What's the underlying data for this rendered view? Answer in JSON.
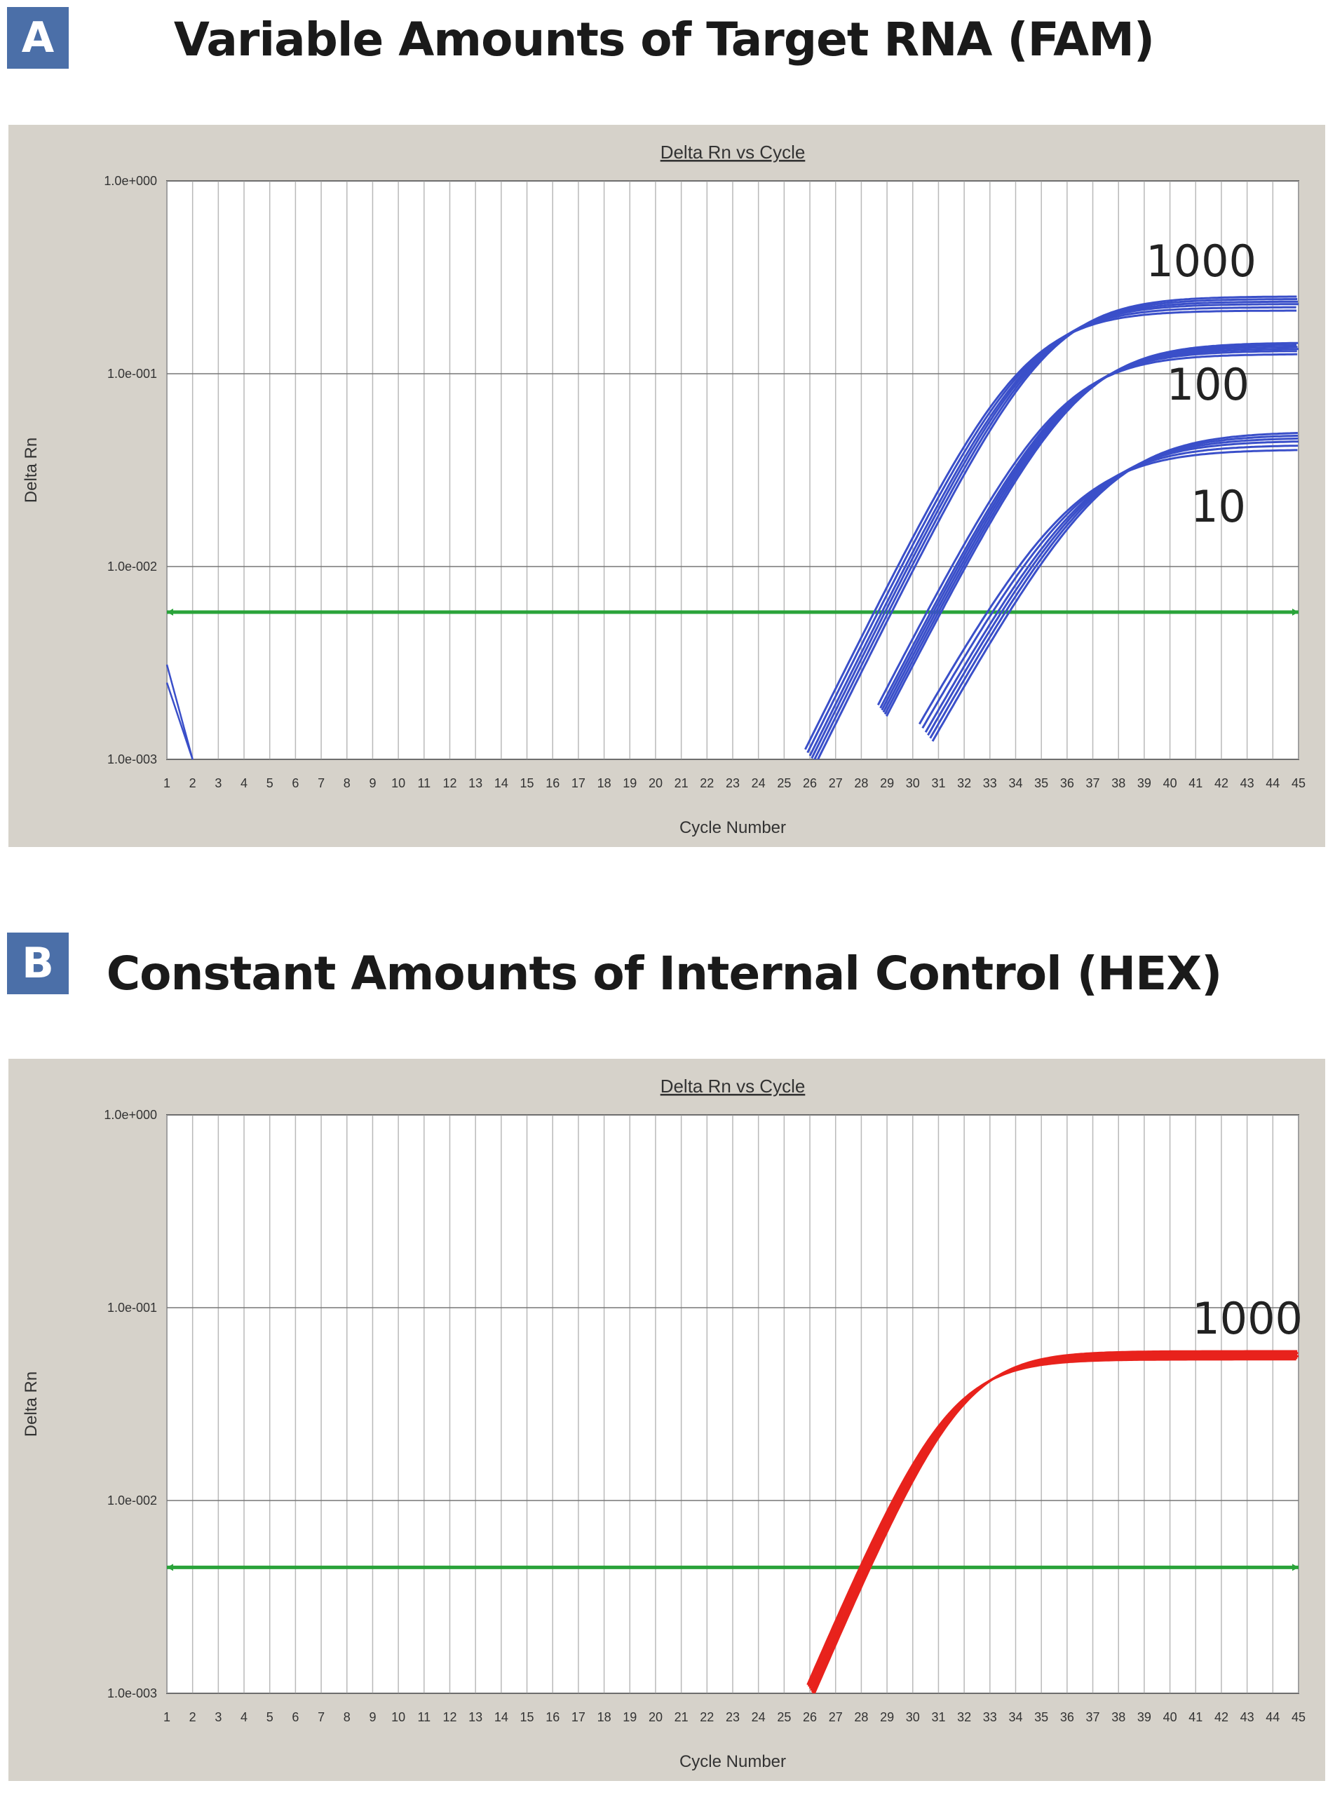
{
  "panels": [
    {
      "badge": "A",
      "title": "Variable Amounts of Target RNA (FAM)"
    },
    {
      "badge": "B",
      "title": "Constant Amounts of Internal Control (HEX)"
    }
  ],
  "chart_data": [
    {
      "type": "line",
      "title": "Delta Rn vs Cycle",
      "xlabel": "Cycle Number",
      "ylabel": "Delta Rn",
      "yscale": "log",
      "ylim": [
        0.001,
        1.0
      ],
      "xlim": [
        1,
        45
      ],
      "yticks": [
        "1.0e+000",
        "1.0e-001",
        "1.0e-002",
        "1.0e-003"
      ],
      "ytick_values": [
        1.0,
        0.1,
        0.01,
        0.001
      ],
      "xticks": [
        "1",
        "2",
        "3",
        "4",
        "5",
        "6",
        "7",
        "8",
        "9",
        "10",
        "11",
        "12",
        "13",
        "14",
        "15",
        "16",
        "17",
        "18",
        "19",
        "20",
        "21",
        "22",
        "23",
        "24",
        "25",
        "26",
        "27",
        "28",
        "29",
        "30",
        "31",
        "32",
        "33",
        "34",
        "35",
        "36",
        "37",
        "38",
        "39",
        "40",
        "41",
        "42",
        "43",
        "44",
        "45"
      ],
      "grid": true,
      "threshold": 0.0058,
      "threshold_color": "#2aa33a",
      "series_color": "#3a4fc9",
      "annotations": [
        "1000",
        "100",
        "10"
      ],
      "series": [
        {
          "label_index": 0,
          "ct": 28.8,
          "plateau": 0.23,
          "k": 0.62,
          "replicates": [
            -0.3,
            -0.15,
            0,
            0.12,
            0.25,
            0.38
          ],
          "start": 26.0
        },
        {
          "label_index": 1,
          "ct": 30.8,
          "plateau": 0.135,
          "k": 0.6,
          "replicates": [
            -0.25,
            -0.1,
            0,
            0.1,
            0.2,
            0.3
          ],
          "start": 28.8
        },
        {
          "label_index": 2,
          "ct": 33.3,
          "plateau": 0.045,
          "k": 0.55,
          "replicates": [
            -0.4,
            -0.2,
            0,
            0.15,
            0.3,
            0.45
          ],
          "start": 30.5
        }
      ],
      "early_noise": [
        [
          1,
          0.0031
        ],
        [
          2,
          0.001
        ]
      ]
    },
    {
      "type": "line",
      "title": "Delta Rn vs Cycle",
      "xlabel": "Cycle Number",
      "ylabel": "Delta Rn",
      "yscale": "log",
      "ylim": [
        0.001,
        1.0
      ],
      "xlim": [
        1,
        45
      ],
      "yticks": [
        "1.0e+000",
        "1.0e-001",
        "1.0e-002",
        "1.0e-003"
      ],
      "ytick_values": [
        1.0,
        0.1,
        0.01,
        0.001
      ],
      "xticks": [
        "1",
        "2",
        "3",
        "4",
        "5",
        "6",
        "7",
        "8",
        "9",
        "10",
        "11",
        "12",
        "13",
        "14",
        "15",
        "16",
        "17",
        "18",
        "19",
        "20",
        "21",
        "22",
        "23",
        "24",
        "25",
        "26",
        "27",
        "28",
        "29",
        "30",
        "31",
        "32",
        "33",
        "34",
        "35",
        "36",
        "37",
        "38",
        "39",
        "40",
        "41",
        "42",
        "43",
        "44",
        "45"
      ],
      "grid": true,
      "threshold": 0.0045,
      "threshold_color": "#2aa33a",
      "series_color": "#e8221c",
      "annotations": [
        "1000"
      ],
      "series": [
        {
          "label_index": 0,
          "ct": 28.1,
          "plateau": 0.056,
          "k": 0.72,
          "replicates": [
            -0.15,
            -0.08,
            0,
            0.08,
            0.15,
            0.2,
            0.25
          ],
          "start": 26.0
        }
      ]
    }
  ]
}
